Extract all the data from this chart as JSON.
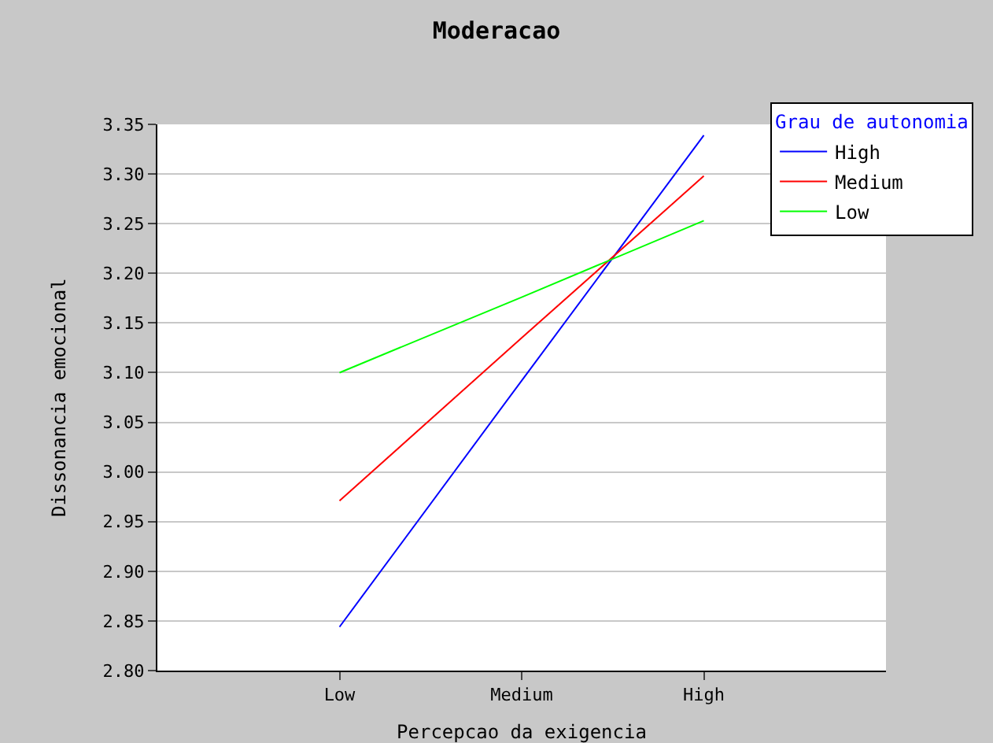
{
  "chart_data": {
    "type": "line",
    "title": "Moderacao",
    "xlabel": "Percepcao da exigencia",
    "ylabel": "Dissonancia emocional",
    "legend_title": "Grau de autonomia",
    "categories": [
      "Low",
      "Medium",
      "High"
    ],
    "series": [
      {
        "name": "High",
        "color": "#0000ff",
        "values": [
          2.844,
          3.092,
          3.339
        ]
      },
      {
        "name": "Medium",
        "color": "#ff0000",
        "values": [
          2.971,
          3.135,
          3.298
        ]
      },
      {
        "name": "Low",
        "color": "#00ff00",
        "values": [
          3.1,
          3.176,
          3.253
        ]
      }
    ],
    "ylim": [
      2.8,
      3.35
    ],
    "yticks": [
      {
        "value": 2.8,
        "label": "2.80"
      },
      {
        "value": 2.85,
        "label": "2.85"
      },
      {
        "value": 2.9,
        "label": "2.90"
      },
      {
        "value": 2.95,
        "label": "2.95"
      },
      {
        "value": 3.0,
        "label": "3.00"
      },
      {
        "value": 3.05,
        "label": "3.05"
      },
      {
        "value": 3.1,
        "label": "3.10"
      },
      {
        "value": 3.15,
        "label": "3.15"
      },
      {
        "value": 3.2,
        "label": "3.20"
      },
      {
        "value": 3.25,
        "label": "3.25"
      },
      {
        "value": 3.3,
        "label": "3.30"
      },
      {
        "value": 3.35,
        "label": "3.35"
      }
    ],
    "grid": "y",
    "legend": "top right",
    "marker": "none",
    "line_style": "solid"
  }
}
